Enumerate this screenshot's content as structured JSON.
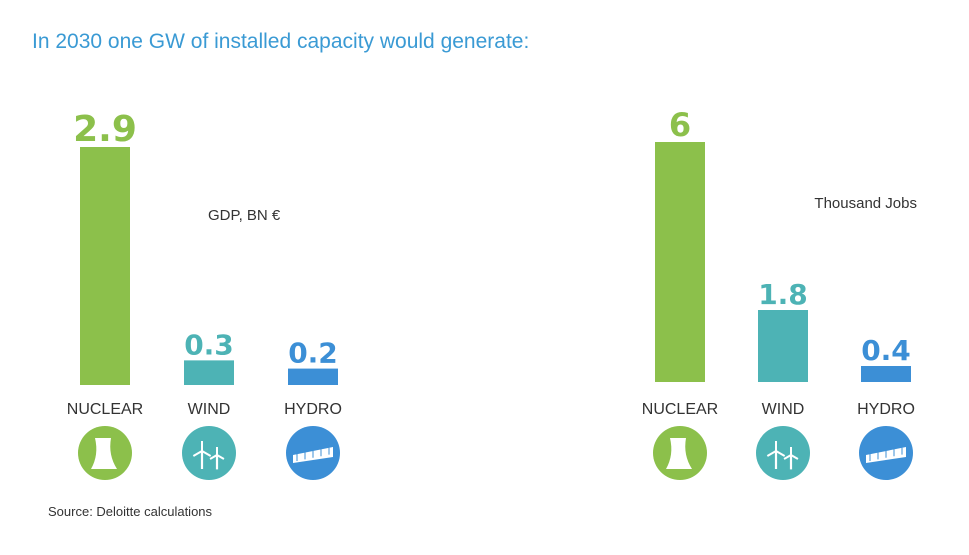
{
  "title": "In 2030 one GW of installed capacity would generate:",
  "source": "Source: Deloitte calculations",
  "colors": {
    "nuclear": "#8cc04b",
    "wind": "#4db3b5",
    "hydro": "#3c8fd6",
    "title": "#3a9ad4"
  },
  "icons": [
    "nuclear-cooling-tower-icon",
    "wind-turbine-icon",
    "hydro-dam-icon"
  ],
  "chart_data": [
    {
      "type": "bar",
      "unit_label": "GDP, BN €",
      "categories": [
        "NUCLEAR",
        "WIND",
        "HYDRO"
      ],
      "values": [
        2.9,
        0.3,
        0.2
      ],
      "value_labels": [
        "2.9",
        "0.3",
        "0.2"
      ],
      "ylim": [
        0,
        2.9
      ],
      "grid": false
    },
    {
      "type": "bar",
      "unit_label": "Thousand Jobs",
      "categories": [
        "NUCLEAR",
        "WIND",
        "HYDRO"
      ],
      "values": [
        6,
        1.8,
        0.4
      ],
      "value_labels": [
        "6",
        "1.8",
        "0.4"
      ],
      "ylim": [
        0,
        6
      ],
      "grid": false
    }
  ]
}
